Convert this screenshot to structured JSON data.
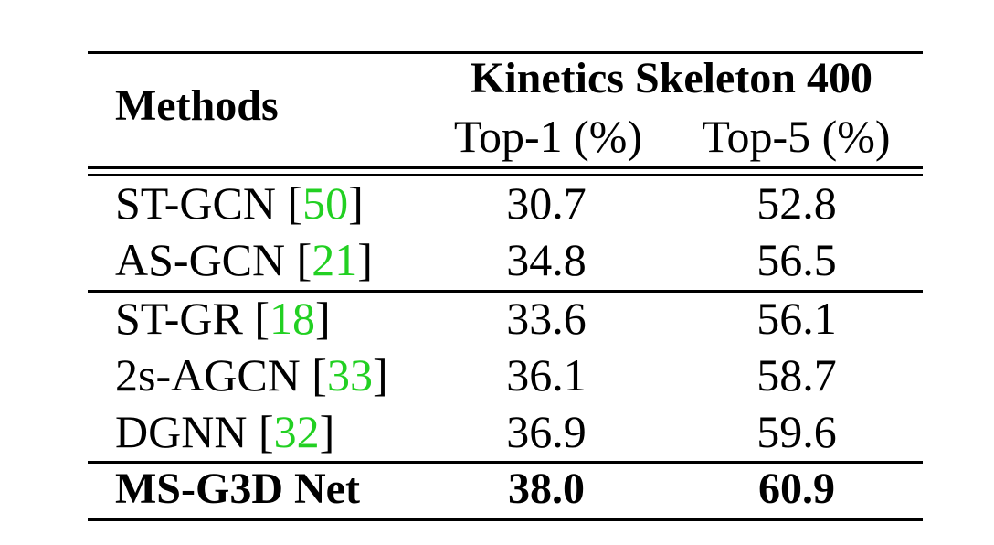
{
  "table": {
    "header": {
      "methods_label": "Methods",
      "group_label": "Kinetics Skeleton 400",
      "top1_label": "Top-1 (%)",
      "top5_label": "Top-5 (%)"
    },
    "rows": [
      {
        "method": "ST-GCN",
        "cite": "50",
        "top1": "30.7",
        "top5": "52.8"
      },
      {
        "method": "AS-GCN",
        "cite": "21",
        "top1": "34.8",
        "top5": "56.5"
      },
      {
        "method": "ST-GR",
        "cite": "18",
        "top1": "33.6",
        "top5": "56.1"
      },
      {
        "method": "2s-AGCN",
        "cite": "33",
        "top1": "36.1",
        "top5": "58.7"
      },
      {
        "method": "DGNN",
        "cite": "32",
        "top1": "36.9",
        "top5": "59.6"
      },
      {
        "method": "MS-G3D Net",
        "cite": "",
        "top1": "38.0",
        "top5": "60.9"
      }
    ]
  },
  "colors": {
    "citation": "#22d022",
    "text": "#000000"
  }
}
